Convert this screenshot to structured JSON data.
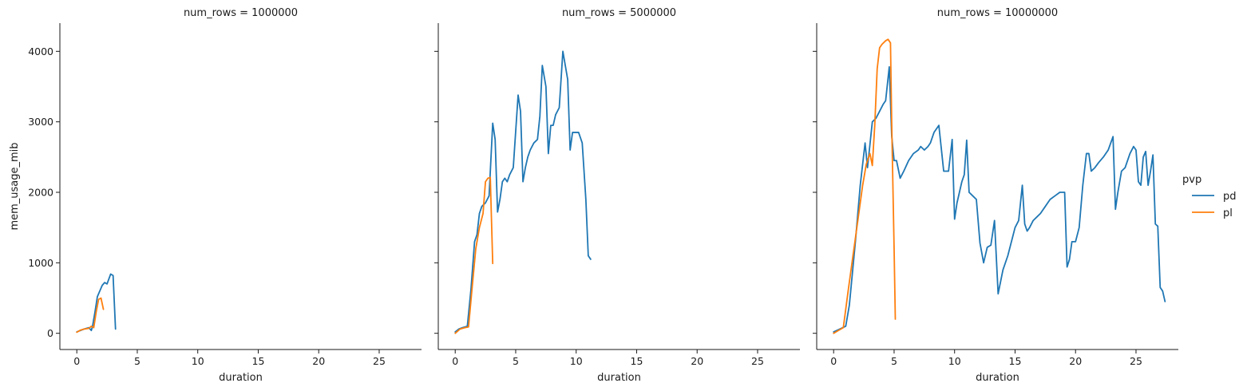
{
  "chart_data": {
    "type": "line",
    "facet_variable": "num_rows",
    "panel_title_template": "num_rows = {value}",
    "panels": [
      {
        "facet_value": "1000000",
        "title": "num_rows = 1000000",
        "series": [
          {
            "name": "pd",
            "x": [
              0,
              0.3,
              0.6,
              1.0,
              1.2,
              1.3,
              1.5,
              1.7,
              1.9,
              2.1,
              2.3,
              2.5,
              2.8,
              3.0,
              3.2
            ],
            "y": [
              20,
              40,
              60,
              80,
              40,
              100,
              300,
              520,
              600,
              680,
              720,
              700,
              840,
              820,
              60
            ]
          },
          {
            "name": "pl",
            "x": [
              0,
              0.3,
              0.6,
              1.0,
              1.2,
              1.4,
              1.6,
              1.8,
              2.0,
              2.2
            ],
            "y": [
              15,
              45,
              60,
              70,
              100,
              80,
              300,
              480,
              500,
              340
            ]
          }
        ]
      },
      {
        "facet_value": "5000000",
        "title": "num_rows = 5000000",
        "series": [
          {
            "name": "pd",
            "x": [
              0,
              0.3,
              0.6,
              1.0,
              1.3,
              1.6,
              1.8,
              2.0,
              2.2,
              2.5,
              2.8,
              3.1,
              3.3,
              3.5,
              3.7,
              3.9,
              4.1,
              4.3,
              4.5,
              4.8,
              5.2,
              5.4,
              5.6,
              5.8,
              6.0,
              6.2,
              6.5,
              6.8,
              7.0,
              7.2,
              7.5,
              7.7,
              7.9,
              8.1,
              8.3,
              8.6,
              8.9,
              9.1,
              9.3,
              9.5,
              9.7,
              9.9,
              10.2,
              10.5,
              10.8,
              11.0,
              11.2
            ],
            "y": [
              20,
              60,
              80,
              100,
              620,
              1300,
              1400,
              1700,
              1800,
              1850,
              1950,
              2980,
              2750,
              1720,
              1900,
              2150,
              2200,
              2150,
              2250,
              2350,
              3380,
              3150,
              2150,
              2350,
              2500,
              2600,
              2700,
              2750,
              3080,
              3800,
              3500,
              2550,
              2950,
              2950,
              3100,
              3200,
              4000,
              3800,
              3600,
              2600,
              2850,
              2850,
              2850,
              2700,
              1900,
              1100,
              1050
            ]
          },
          {
            "name": "pl",
            "x": [
              0,
              0.4,
              0.8,
              1.1,
              1.4,
              1.7,
              2.0,
              2.3,
              2.5,
              2.7,
              2.9,
              3.1
            ],
            "y": [
              0,
              60,
              80,
              90,
              650,
              1200,
              1500,
              1700,
              2150,
              2200,
              2210,
              990
            ]
          }
        ]
      },
      {
        "facet_value": "10000000",
        "title": "num_rows = 10000000",
        "series": [
          {
            "name": "pd",
            "x": [
              0,
              0.5,
              1.0,
              1.3,
              1.8,
              2.2,
              2.6,
              2.8,
              3.2,
              3.5,
              3.8,
              4.1,
              4.3,
              4.6,
              4.8,
              5.0,
              5.2,
              5.5,
              5.8,
              6.2,
              6.6,
              7.0,
              7.2,
              7.5,
              7.8,
              8.0,
              8.3,
              8.7,
              9.1,
              9.5,
              9.8,
              10.0,
              10.2,
              10.4,
              10.6,
              10.8,
              11.0,
              11.2,
              11.5,
              11.8,
              12.1,
              12.4,
              12.7,
              13.0,
              13.3,
              13.6,
              14.0,
              14.4,
              14.7,
              15.0,
              15.3,
              15.6,
              15.8,
              16.0,
              16.2,
              16.5,
              16.8,
              17.1,
              17.5,
              17.9,
              18.3,
              18.7,
              19.1,
              19.3,
              19.5,
              19.7,
              20.0,
              20.3,
              20.6,
              20.9,
              21.1,
              21.3,
              21.6,
              21.9,
              22.3,
              22.7,
              23.1,
              23.3,
              23.5,
              23.8,
              24.1,
              24.5,
              24.8,
              25.0,
              25.2,
              25.4,
              25.6,
              25.8,
              26.0,
              26.2,
              26.4,
              26.6,
              26.8,
              27.0,
              27.2,
              27.4
            ],
            "y": [
              20,
              60,
              100,
              400,
              1300,
              2100,
              2700,
              2350,
              3000,
              3050,
              3150,
              3250,
              3300,
              3780,
              2800,
              2450,
              2450,
              2200,
              2300,
              2450,
              2550,
              2600,
              2650,
              2600,
              2650,
              2700,
              2850,
              2950,
              2300,
              2300,
              2750,
              1620,
              1850,
              2000,
              2150,
              2250,
              2740,
              2000,
              1950,
              1900,
              1280,
              1000,
              1220,
              1250,
              1600,
              560,
              900,
              1100,
              1300,
              1500,
              1600,
              2100,
              1550,
              1450,
              1500,
              1600,
              1650,
              1700,
              1800,
              1900,
              1950,
              2000,
              2000,
              940,
              1050,
              1300,
              1300,
              1500,
              2100,
              2550,
              2550,
              2300,
              2350,
              2420,
              2500,
              2600,
              2790,
              1760,
              2000,
              2300,
              2350,
              2550,
              2650,
              2600,
              2150,
              2100,
              2500,
              2580,
              2100,
              2300,
              2530,
              1550,
              1520,
              650,
              600,
              450
            ]
          },
          {
            "name": "pl",
            "x": [
              0,
              0.4,
              0.8,
              1.2,
              1.6,
              2.0,
              2.4,
              2.7,
              3.0,
              3.2,
              3.4,
              3.6,
              3.8,
              4.0,
              4.3,
              4.5,
              4.7,
              4.8,
              5.0,
              5.1
            ],
            "y": [
              0,
              40,
              80,
              600,
              1100,
              1600,
              2100,
              2400,
              2550,
              2380,
              2950,
              3750,
              4050,
              4100,
              4150,
              4170,
              4120,
              3000,
              1200,
              200
            ]
          }
        ]
      }
    ],
    "legend": {
      "title": "pvp",
      "entries": [
        "pd",
        "pl"
      ],
      "placement": "right"
    },
    "xlabel": "duration",
    "ylabel": "mem_usage_mib",
    "xlim": [
      -1.4,
      28.5
    ],
    "ylim": [
      -230,
      4400
    ],
    "x_ticks": [
      0,
      5,
      10,
      15,
      20,
      25
    ],
    "y_ticks": [
      0,
      1000,
      2000,
      3000,
      4000
    ],
    "grid": false,
    "sharey": true,
    "colors": {
      "pd": "#1f77b4",
      "pl": "#ff7f0e",
      "axis": "#1a1a1a"
    }
  }
}
